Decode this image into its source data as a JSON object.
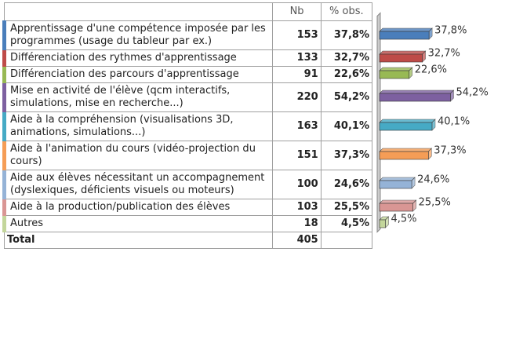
{
  "chart_data": {
    "type": "bar",
    "orientation": "horizontal",
    "columns": [
      "Nb",
      "% obs."
    ],
    "categories": [
      "Apprentissage d'une compétence imposée par les programmes (usage du tableur par ex.)",
      "Différenciation des rythmes d'apprentissage",
      "Différenciation des parcours d'apprentissage",
      "Mise en activité de l'élève (qcm interactifs, simulations, mise en recherche...)",
      "Aide à la compréhension (visualisations 3D, animations, simulations...)",
      "Aide à l'animation du cours (vidéo-projection du cours)",
      "Aide aux élèves nécessitant un accompagnement (dyslexiques, déficients visuels ou moteurs)",
      "Aide à la production/publication des élèves",
      "Autres"
    ],
    "counts": [
      153,
      133,
      91,
      220,
      163,
      151,
      100,
      103,
      18
    ],
    "values": [
      37.8,
      32.7,
      22.6,
      54.2,
      40.1,
      37.3,
      24.6,
      25.5,
      4.5
    ],
    "value_labels": [
      "37,8%",
      "32,7%",
      "22,6%",
      "54,2%",
      "40,1%",
      "37,3%",
      "24,6%",
      "25,5%",
      "4,5%"
    ],
    "colors": [
      "#4a7ebb",
      "#be4b48",
      "#98b954",
      "#7d60a0",
      "#46aac5",
      "#f59d56",
      "#95b3d7",
      "#d99694",
      "#c3d69b"
    ],
    "total_label": "Total",
    "total": 405
  }
}
